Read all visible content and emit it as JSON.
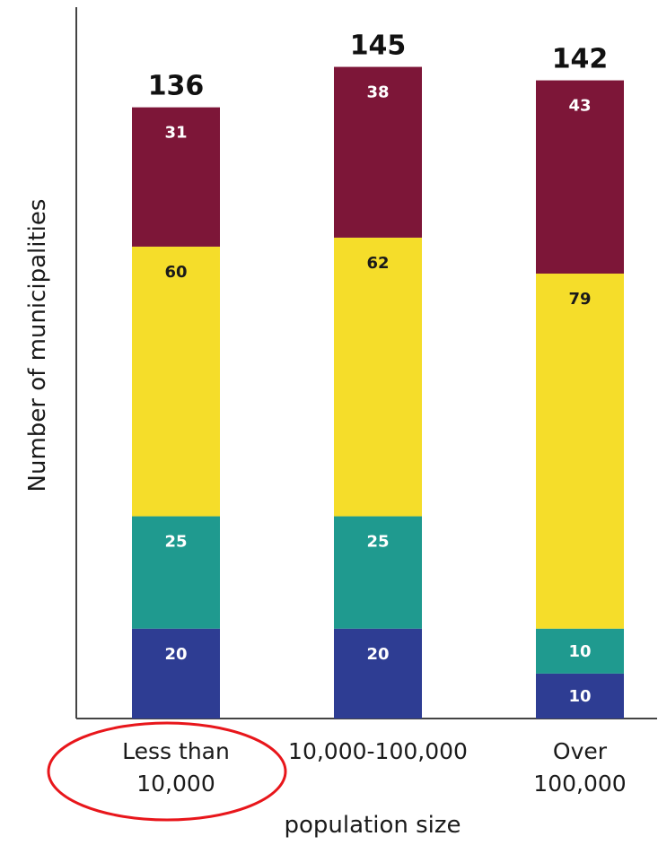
{
  "chart_data": {
    "type": "bar",
    "stacked": true,
    "title": "",
    "xlabel": "population size",
    "ylabel": "Number of municipalities",
    "categories": [
      [
        "Less than",
        "10,000"
      ],
      [
        "10,000-100,000"
      ],
      [
        "Over",
        "100,000"
      ]
    ],
    "totals": [
      "136",
      "145",
      "142"
    ],
    "series": [
      {
        "color": "#2e3d93",
        "label_color": "#ffffff",
        "values": [
          20,
          20,
          10
        ]
      },
      {
        "color": "#1f9a8f",
        "label_color": "#ffffff",
        "values": [
          25,
          25,
          10
        ]
      },
      {
        "color": "#f5dd2a",
        "label_color": "#1a1a1a",
        "values": [
          60,
          62,
          79
        ]
      },
      {
        "color": "#7d1638",
        "label_color": "#ffffff",
        "values": [
          31,
          38,
          43
        ]
      }
    ],
    "annotation": {
      "type": "ellipse",
      "color": "#e8161b",
      "target_category": 0
    }
  }
}
